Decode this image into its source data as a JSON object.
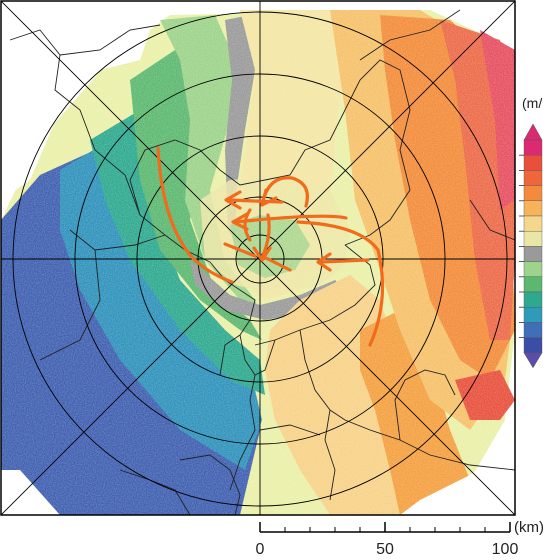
{
  "legend": {
    "unit_label": "(m/",
    "colors": [
      "#dc2a72",
      "#e8503c",
      "#f0663a",
      "#f48a3c",
      "#f7b25c",
      "#f4d68c",
      "#ece6a6",
      "#9a9a9a",
      "#9dd38a",
      "#5cb870",
      "#2ea98f",
      "#2f9ab9",
      "#3f6fb8",
      "#3a4ea6"
    ]
  },
  "scale_bar": {
    "unit_label": "(km)",
    "tick_labels": [
      "0",
      "50",
      "100"
    ]
  },
  "palette": {
    "frame": "#000000",
    "arrows": "#f26b1d",
    "background": "#ffffff"
  }
}
